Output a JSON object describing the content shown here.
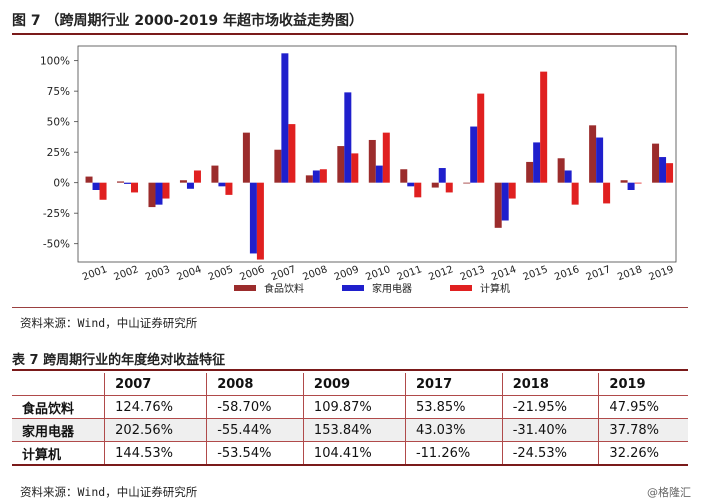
{
  "figure": {
    "title": "图 7 （跨周期行业 2000-2019 年超市场收益走势图）",
    "source": "资料来源：Wind，中山证券研究所"
  },
  "chart_data": {
    "type": "bar",
    "categories": [
      "2001",
      "2002",
      "2003",
      "2004",
      "2005",
      "2006",
      "2007",
      "2008",
      "2009",
      "2010",
      "2011",
      "2012",
      "2013",
      "2014",
      "2015",
      "2016",
      "2017",
      "2018",
      "2019"
    ],
    "series": [
      {
        "name": "食品饮料",
        "color": "#9b2c2c",
        "values": [
          5,
          1,
          -20,
          2,
          14,
          41,
          27,
          6,
          30,
          35,
          11,
          -4,
          0,
          -37,
          17,
          20,
          47,
          2,
          32
        ]
      },
      {
        "name": "家用电器",
        "color": "#1f1fcc",
        "values": [
          -6,
          -1,
          -18,
          -5,
          -3,
          -58,
          106,
          10,
          74,
          14,
          -3,
          12,
          46,
          -31,
          33,
          10,
          37,
          -6,
          21
        ]
      },
      {
        "name": "计算机",
        "color": "#e02020",
        "values": [
          -14,
          -8,
          -13,
          10,
          -10,
          -63,
          48,
          11,
          24,
          41,
          -12,
          -8,
          73,
          -13,
          91,
          -18,
          -17,
          0,
          16
        ]
      }
    ],
    "yticks": [
      -50,
      -25,
      0,
      25,
      50,
      75,
      100
    ],
    "ytick_labels": [
      "-50%",
      "-25%",
      "0%",
      "25%",
      "50%",
      "75%",
      "100%"
    ],
    "ylim": [
      -65,
      112
    ],
    "legend": "bottom",
    "grid": false
  },
  "table": {
    "title": "表 7  跨周期行业的年度绝对收益特征",
    "headers": [
      "",
      "2007",
      "2008",
      "2009",
      "2017",
      "2018",
      "2019"
    ],
    "rows": [
      {
        "label": "食品饮料",
        "values": [
          "124.76%",
          "-58.70%",
          "109.87%",
          "53.85%",
          "-21.95%",
          "47.95%"
        ]
      },
      {
        "label": "家用电器",
        "values": [
          "202.56%",
          "-55.44%",
          "153.84%",
          "43.03%",
          "-31.40%",
          "37.78%"
        ]
      },
      {
        "label": "计算机",
        "values": [
          "144.53%",
          "-53.54%",
          "104.41%",
          "-11.26%",
          "-24.53%",
          "32.26%"
        ]
      }
    ],
    "source": "资料来源：Wind，中山证券研究所"
  },
  "watermark": "@格隆汇"
}
